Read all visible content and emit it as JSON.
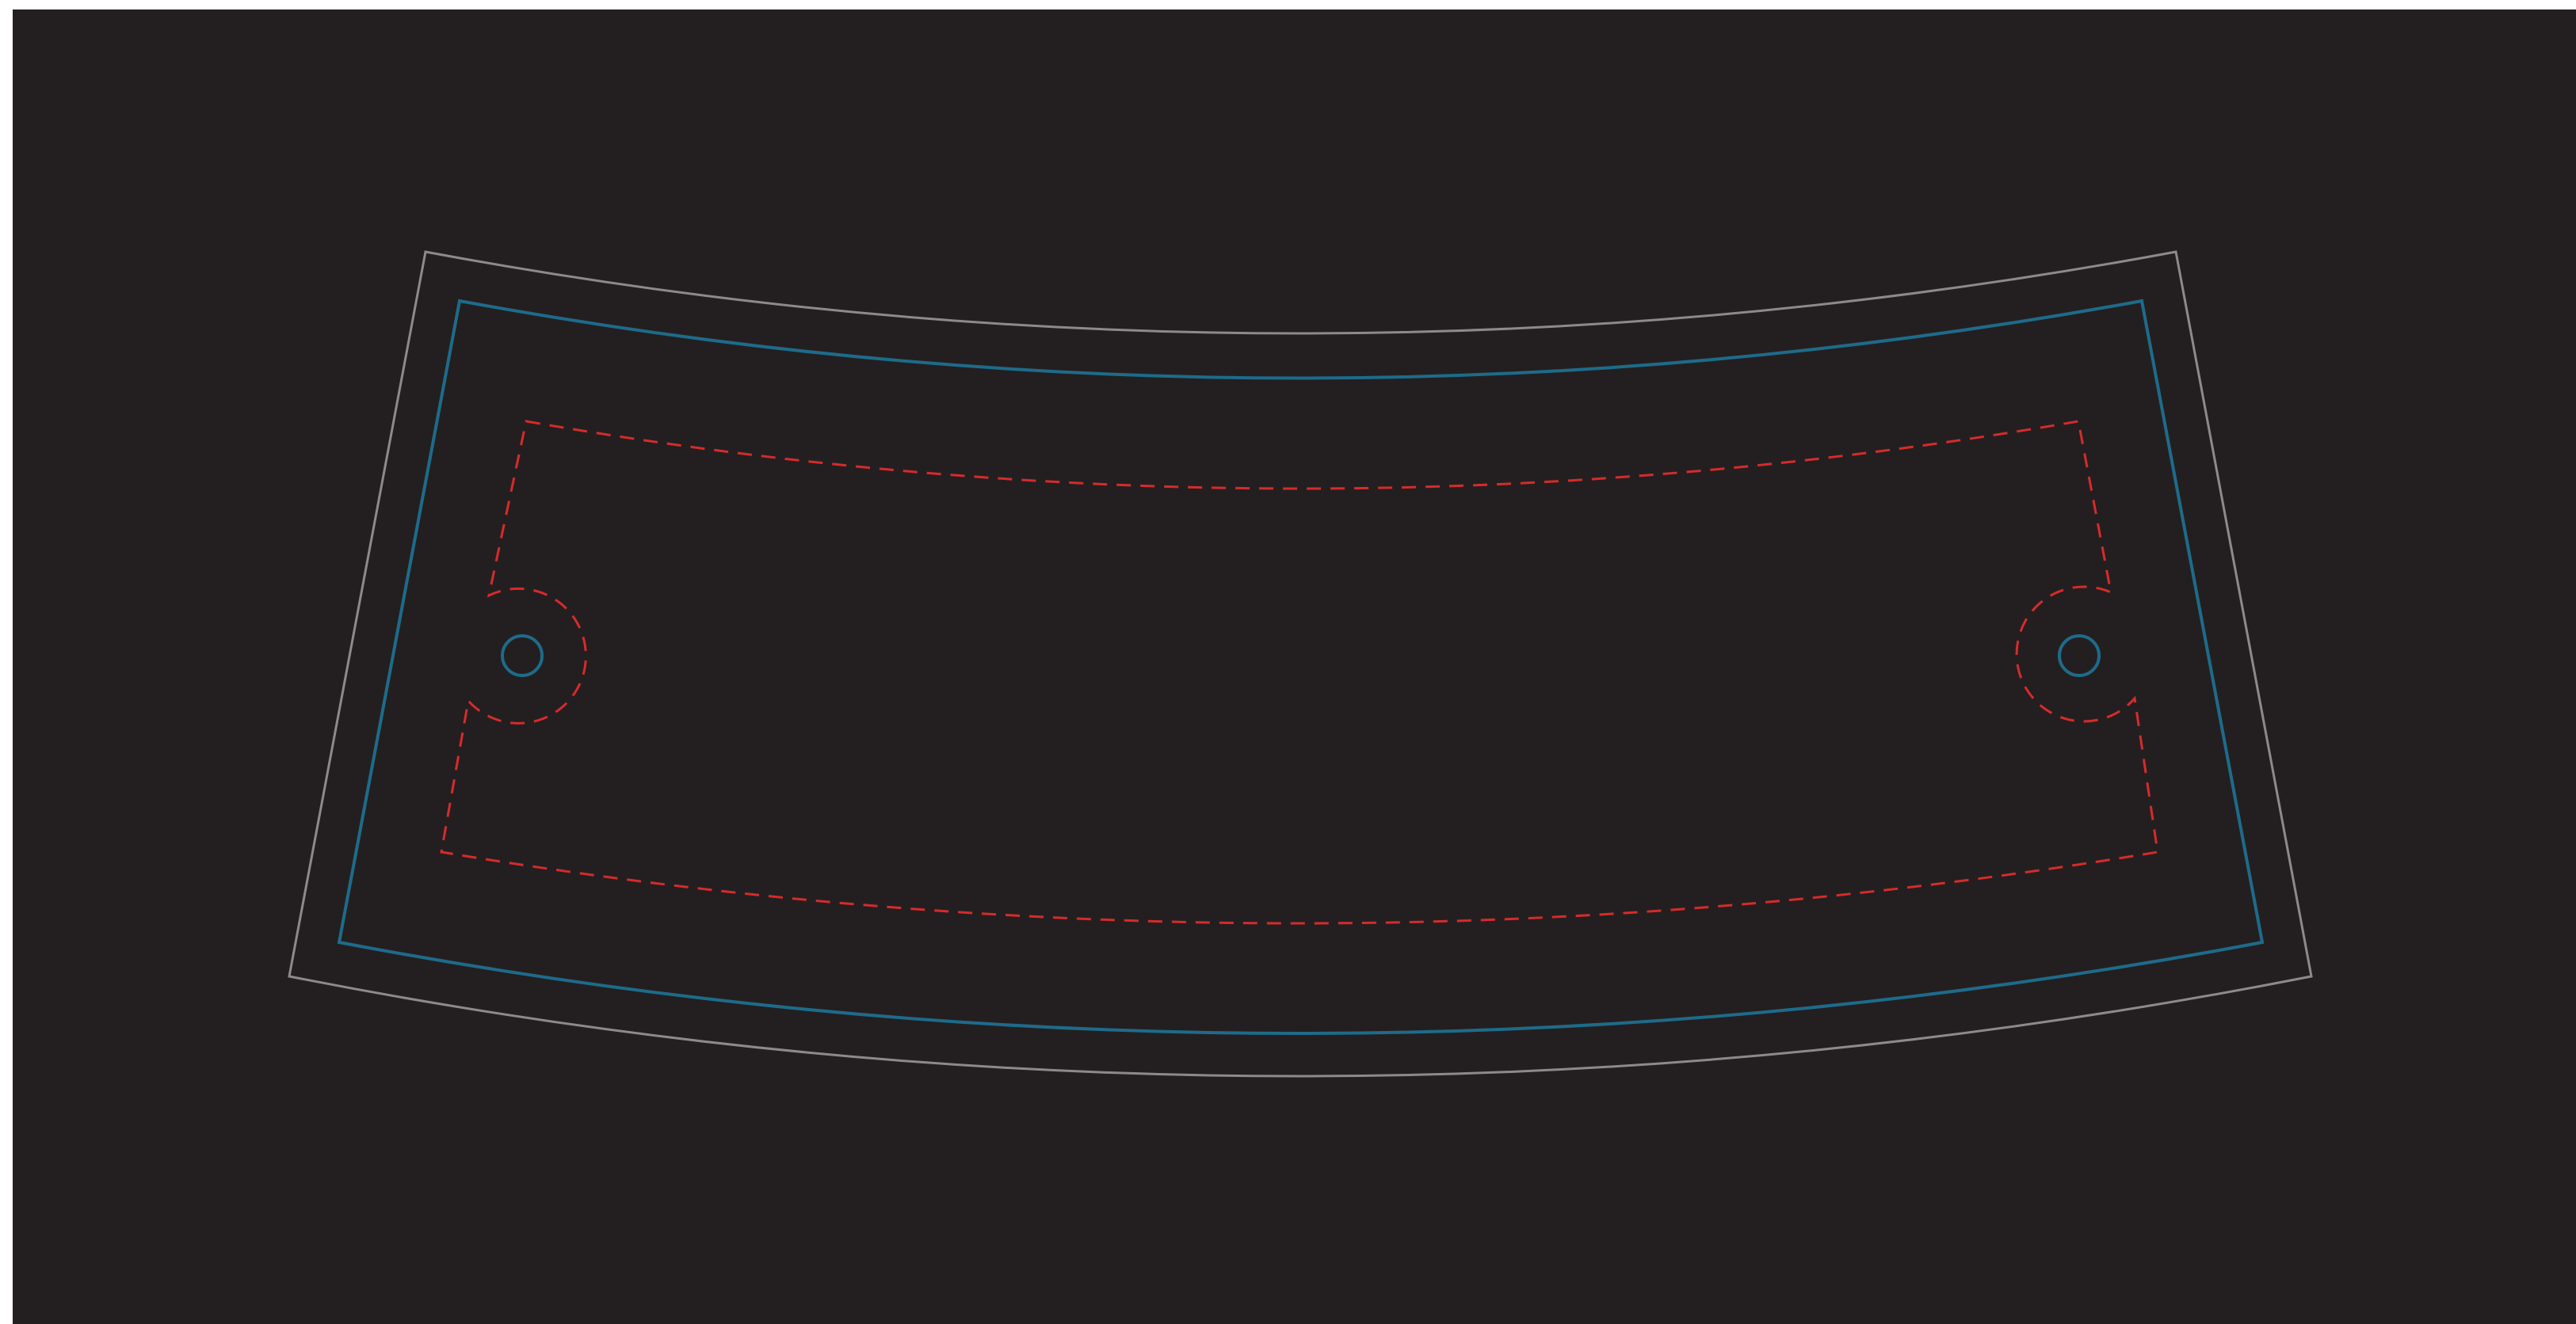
{
  "colors": {
    "page_border": "#ffffff",
    "canvas_background": "#231f20",
    "bleed_line": "#8c8a8b",
    "trim_line": "#1e6b8a",
    "safe_zone_line": "#d62b2b",
    "mounting_hole": "#1e6b8a",
    "hole_clearance": "#d62b2b"
  },
  "diagram": {
    "shape": "curved-trapezoid",
    "mounting_holes": 2,
    "line_styles": {
      "bleed": "solid-thin",
      "trim": "solid",
      "safe_zone": "dashed"
    }
  }
}
